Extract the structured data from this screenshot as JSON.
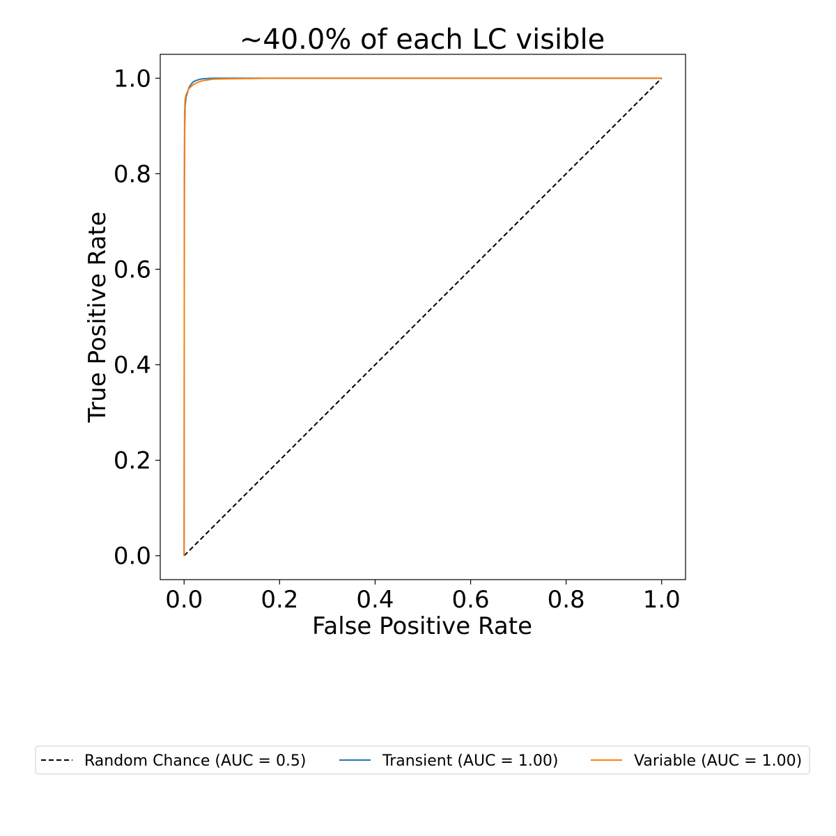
{
  "chart_data": {
    "type": "line",
    "title": "~40.0% of each LC visible",
    "xlabel": "False Positive Rate",
    "ylabel": "True Positive Rate",
    "xlim": [
      -0.05,
      1.05
    ],
    "ylim": [
      -0.05,
      1.05
    ],
    "xticks": [
      0.0,
      0.2,
      0.4,
      0.6,
      0.8,
      1.0
    ],
    "xtick_labels": [
      "0.0",
      "0.2",
      "0.4",
      "0.6",
      "0.8",
      "1.0"
    ],
    "yticks": [
      0.0,
      0.2,
      0.4,
      0.6,
      0.8,
      1.0
    ],
    "ytick_labels": [
      "0.0",
      "0.2",
      "0.4",
      "0.6",
      "0.8",
      "1.0"
    ],
    "grid": false,
    "legend_placement": "bottom",
    "series": [
      {
        "name": "Random Chance (AUC = 0.5)",
        "color": "#000000",
        "dash": "dashed",
        "x": [
          0.0,
          1.0
        ],
        "y": [
          0.0,
          1.0
        ]
      },
      {
        "name": "Transient (AUC = 1.00)",
        "color": "#1f77b4",
        "dash": "solid",
        "x": [
          0.0,
          0.0005,
          0.001,
          0.002,
          0.004,
          0.007,
          0.01,
          0.015,
          0.02,
          0.03,
          0.04,
          0.06,
          0.1,
          0.2,
          0.5,
          1.0
        ],
        "y": [
          0.0,
          0.7,
          0.88,
          0.94,
          0.96,
          0.97,
          0.98,
          0.988,
          0.993,
          0.997,
          0.999,
          1.0,
          1.0,
          1.0,
          1.0,
          1.0
        ]
      },
      {
        "name": "Variable (AUC = 1.00)",
        "color": "#ff7f0e",
        "dash": "solid",
        "x": [
          0.0,
          0.0005,
          0.001,
          0.002,
          0.004,
          0.007,
          0.01,
          0.015,
          0.02,
          0.03,
          0.04,
          0.06,
          0.1,
          0.2,
          0.5,
          1.0
        ],
        "y": [
          0.0,
          0.8,
          0.93,
          0.955,
          0.965,
          0.972,
          0.978,
          0.983,
          0.987,
          0.992,
          0.995,
          0.998,
          0.999,
          1.0,
          1.0,
          1.0
        ]
      }
    ]
  }
}
